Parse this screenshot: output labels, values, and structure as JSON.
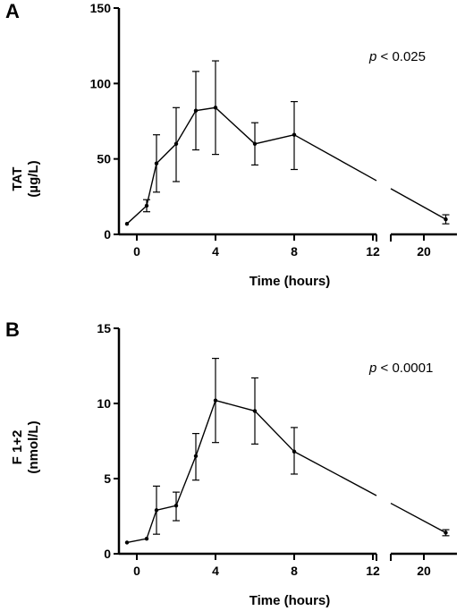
{
  "chart_data": [
    {
      "type": "line",
      "panel_label": "A",
      "ylabel_line1": "TAT",
      "ylabel_line2": "(µg/L)",
      "xlabel": "Time (hours)",
      "annotation": {
        "italic": "p",
        "text": " < 0.025"
      },
      "ylim": [
        0,
        150
      ],
      "yticks": [
        "0",
        "50",
        "100",
        "150"
      ],
      "xlim_left": [
        -1,
        12
      ],
      "xlim_right": [
        18,
        22
      ],
      "xticks_left": [
        "0",
        "4",
        "8",
        "12"
      ],
      "xticks_right": [
        "20"
      ],
      "axis_break": true,
      "points": [
        {
          "x": -0.5,
          "y": 7,
          "lo": null,
          "hi": null
        },
        {
          "x": 0.5,
          "y": 19,
          "lo": 15,
          "hi": 23
        },
        {
          "x": 1,
          "y": 47,
          "lo": 28,
          "hi": 66
        },
        {
          "x": 2,
          "y": 60,
          "lo": 35,
          "hi": 84
        },
        {
          "x": 3,
          "y": 82,
          "lo": 56,
          "hi": 108
        },
        {
          "x": 4,
          "y": 84,
          "lo": 53,
          "hi": 115
        },
        {
          "x": 6,
          "y": 60,
          "lo": 46,
          "hi": 74
        },
        {
          "x": 8,
          "y": 66,
          "lo": 43,
          "hi": 88
        },
        {
          "x": 21,
          "y": 10,
          "lo": 7,
          "hi": 13
        }
      ]
    },
    {
      "type": "line",
      "panel_label": "B",
      "ylabel_line1": "F 1+2",
      "ylabel_line2": "(nmol/L)",
      "xlabel": "Time (hours)",
      "annotation": {
        "italic": "p",
        "text": " < 0.0001"
      },
      "ylim": [
        0,
        15
      ],
      "yticks": [
        "0",
        "5",
        "10",
        "15"
      ],
      "xlim_left": [
        -1,
        12
      ],
      "xlim_right": [
        18,
        22
      ],
      "xticks_left": [
        "0",
        "4",
        "8",
        "12"
      ],
      "xticks_right": [
        "20"
      ],
      "axis_break": true,
      "points": [
        {
          "x": -0.5,
          "y": 0.75,
          "lo": null,
          "hi": null
        },
        {
          "x": 0.5,
          "y": 1.0,
          "lo": null,
          "hi": null
        },
        {
          "x": 1,
          "y": 2.9,
          "lo": 1.3,
          "hi": 4.5
        },
        {
          "x": 2,
          "y": 3.2,
          "lo": 2.2,
          "hi": 4.1
        },
        {
          "x": 3,
          "y": 6.5,
          "lo": 4.9,
          "hi": 8.0
        },
        {
          "x": 4,
          "y": 10.2,
          "lo": 7.4,
          "hi": 13.0
        },
        {
          "x": 6,
          "y": 9.5,
          "lo": 7.3,
          "hi": 11.7
        },
        {
          "x": 8,
          "y": 6.8,
          "lo": 5.3,
          "hi": 8.4
        },
        {
          "x": 21,
          "y": 1.4,
          "lo": 1.2,
          "hi": 1.6
        }
      ]
    }
  ]
}
